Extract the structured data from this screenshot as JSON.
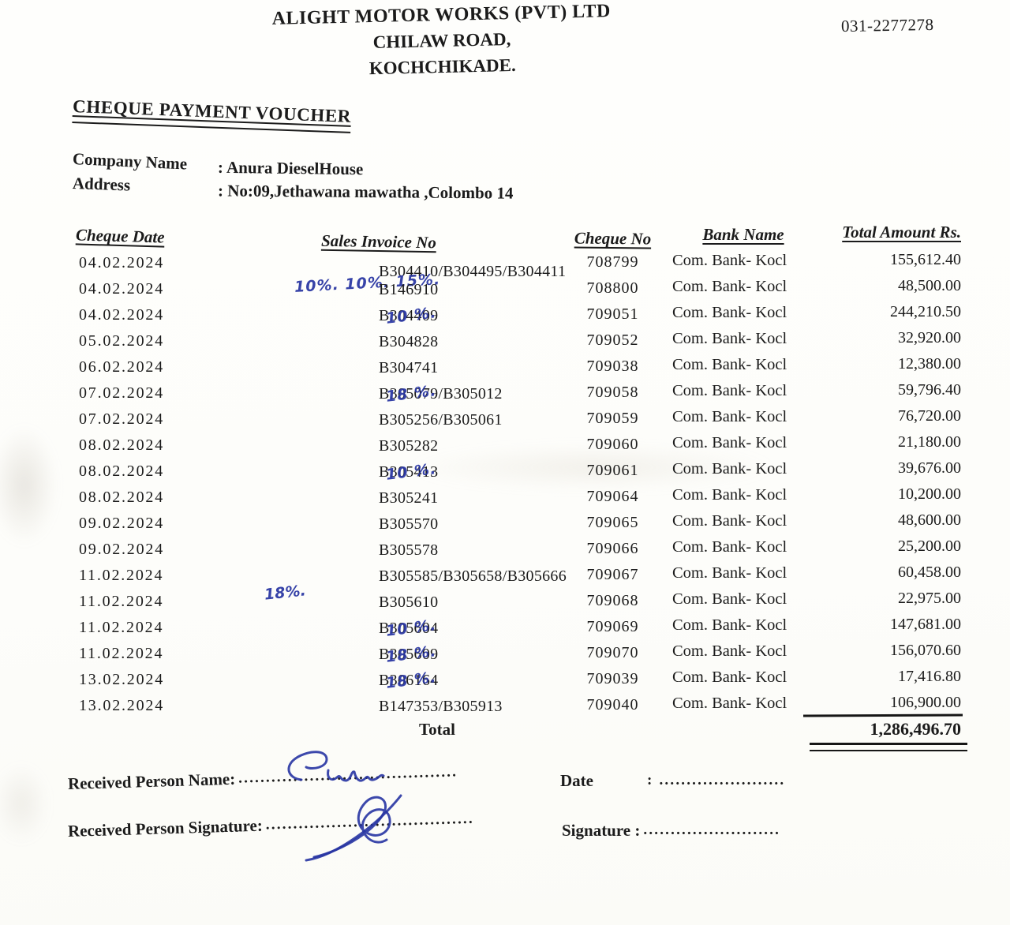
{
  "colors": {
    "ink_blue": "#2734a2",
    "text_black": "#1b1b1b"
  },
  "header": {
    "company_lines": [
      "ALIGHT MOTOR WORKS (PVT) LTD",
      "CHILAW ROAD,",
      "KOCHCHIKADE."
    ],
    "phone": "031-2277278"
  },
  "title": "CHEQUE PAYMENT VOUCHER",
  "company": {
    "name_label": "Company Name",
    "name_value": ": Anura DieselHouse",
    "address_label": "Address",
    "address_value": ": No:09,Jethawana mawatha ,Colombo 14"
  },
  "table": {
    "headers": {
      "date": "Cheque Date",
      "invoice": "Sales Invoice No",
      "cheque_no": "Cheque No",
      "bank": "Bank Name",
      "amount": "Total Amount Rs."
    },
    "rows": [
      {
        "date": "04.02.2024",
        "invoice": "B304410/B304495/B304411",
        "note_below": "10%.      10%. 15%.",
        "cheque_no": "708799",
        "bank": "Com. Bank- Kocl",
        "amount": "155,612.40"
      },
      {
        "date": "04.02.2024",
        "invoice": "B146910",
        "cheque_no": "708800",
        "bank": "Com. Bank- Kocl",
        "amount": "48,500.00"
      },
      {
        "date": "04.02.2024",
        "invoice": "B304409",
        "note": "10 %.",
        "cheque_no": "709051",
        "bank": "Com. Bank- Kocl",
        "amount": "244,210.50"
      },
      {
        "date": "05.02.2024",
        "invoice": "B304828",
        "cheque_no": "709052",
        "bank": "Com. Bank- Kocl",
        "amount": "32,920.00"
      },
      {
        "date": "06.02.2024",
        "invoice": "B304741",
        "cheque_no": "709038",
        "bank": "Com. Bank- Kocl",
        "amount": "12,380.00"
      },
      {
        "date": "07.02.2024",
        "invoice": "B305079/B305012",
        "note": "18 %.",
        "cheque_no": "709058",
        "bank": "Com. Bank- Kocl",
        "amount": "59,796.40"
      },
      {
        "date": "07.02.2024",
        "invoice": "B305256/B305061",
        "cheque_no": "709059",
        "bank": "Com. Bank- Kocl",
        "amount": "76,720.00"
      },
      {
        "date": "08.02.2024",
        "invoice": "B305282",
        "cheque_no": "709060",
        "bank": "Com. Bank- Kocl",
        "amount": "21,180.00"
      },
      {
        "date": "08.02.2024",
        "invoice": "B305413",
        "note": "10 %.",
        "cheque_no": "709061",
        "bank": "Com. Bank- Kocl",
        "amount": "39,676.00"
      },
      {
        "date": "08.02.2024",
        "invoice": "B305241",
        "cheque_no": "709064",
        "bank": "Com. Bank- Kocl",
        "amount": "10,200.00"
      },
      {
        "date": "09.02.2024",
        "invoice": "B305570",
        "cheque_no": "709065",
        "bank": "Com. Bank- Kocl",
        "amount": "48,600.00"
      },
      {
        "date": "09.02.2024",
        "invoice": "B305578",
        "cheque_no": "709066",
        "bank": "Com. Bank- Kocl",
        "amount": "25,200.00"
      },
      {
        "date": "11.02.2024",
        "invoice": "B305585/B305658/B305666",
        "note_below": "18%.",
        "cheque_no": "709067",
        "bank": "Com. Bank- Kocl",
        "amount": "60,458.00"
      },
      {
        "date": "11.02.2024",
        "invoice": "B305610",
        "cheque_no": "709068",
        "bank": "Com. Bank- Kocl",
        "amount": "22,975.00"
      },
      {
        "date": "11.02.2024",
        "invoice": "B305604",
        "note": "10 %.",
        "cheque_no": "709069",
        "bank": "Com. Bank- Kocl",
        "amount": "147,681.00"
      },
      {
        "date": "11.02.2024",
        "invoice": "B305609",
        "note": "18 %.",
        "cheque_no": "709070",
        "bank": "Com. Bank- Kocl",
        "amount": "156,070.60"
      },
      {
        "date": "13.02.2024",
        "invoice": "B306164",
        "note": "18 %.",
        "cheque_no": "709039",
        "bank": "Com. Bank- Kocl",
        "amount": "17,416.80"
      },
      {
        "date": "13.02.2024",
        "invoice": "B147353/B305913",
        "cheque_no": "709040",
        "bank": "Com. Bank- Kocl",
        "amount": "106,900.00"
      }
    ],
    "total_label": "Total",
    "total_amount": "1,286,496.70"
  },
  "footer": {
    "received_name_label": "Received Person Name:",
    "received_name_dots": "........................................",
    "received_signature_label": "Received Person Signature:",
    "received_signature_dots": "......................................",
    "date_label": "Date",
    "date_leader": ": .......................",
    "signature_label": "Signature :",
    "signature_dots": ".........................",
    "handwritten_name": "Supu"
  }
}
